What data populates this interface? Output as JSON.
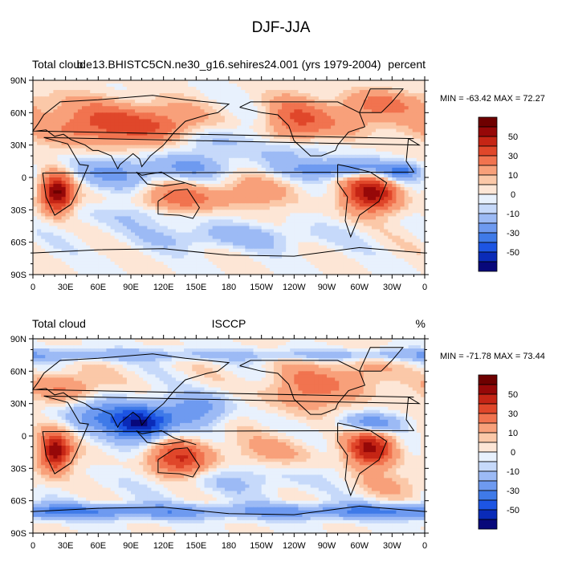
{
  "figure_title": "DJF-JJA",
  "chart_data": [
    {
      "type": "heatmap",
      "variant": "global-contour-map",
      "title_left": "Total cloud",
      "title_center": "b.e13.BHISTC5CN.ne30_g16.sehires24.001 (yrs 1979-2004)",
      "title_right": "percent",
      "stats_text": "MIN = -63.42 MAX =  72.27",
      "min": -63.42,
      "max": 72.27,
      "lon_ticks": [
        "0",
        "30E",
        "60E",
        "90E",
        "120E",
        "150E",
        "180",
        "150W",
        "120W",
        "90W",
        "60W",
        "30W",
        "0"
      ],
      "lat_ticks": [
        "90N",
        "60N",
        "30N",
        "0",
        "30S",
        "60S",
        "90S"
      ],
      "xlim": [
        0,
        360
      ],
      "ylim": [
        -90,
        90
      ],
      "levels": [
        -60,
        -50,
        -40,
        -30,
        -20,
        -10,
        -5,
        0,
        5,
        10,
        20,
        30,
        40,
        50,
        60
      ],
      "colorbar_labels": [
        "50",
        "30",
        "10",
        "0",
        "-10",
        "-30",
        "-50"
      ]
    },
    {
      "type": "heatmap",
      "variant": "global-contour-map",
      "title_left": "Total cloud",
      "title_center": "ISCCP",
      "title_right": "%",
      "stats_text": "MIN = -71.78 MAX =  73.44",
      "min": -71.78,
      "max": 73.44,
      "lon_ticks": [
        "0",
        "30E",
        "60E",
        "90E",
        "120E",
        "150E",
        "180",
        "150W",
        "120W",
        "90W",
        "60W",
        "30W",
        "0"
      ],
      "lat_ticks": [
        "90N",
        "60N",
        "30N",
        "0",
        "30S",
        "60S",
        "90S"
      ],
      "xlim": [
        0,
        360
      ],
      "ylim": [
        -90,
        90
      ],
      "levels": [
        -60,
        -50,
        -40,
        -30,
        -20,
        -10,
        -5,
        0,
        5,
        10,
        20,
        30,
        40,
        50,
        60
      ],
      "colorbar_labels": [
        "50",
        "30",
        "10",
        "0",
        "-10",
        "-30",
        "-50"
      ]
    }
  ],
  "colors": {
    "palette": [
      "#08087a",
      "#0a2bb8",
      "#1d55e3",
      "#3f7ae8",
      "#6e9af0",
      "#9cbaf5",
      "#c6d9fa",
      "#e8f1fd",
      "#fde6d6",
      "#fbc8a8",
      "#f8a07a",
      "#f1734f",
      "#e0472a",
      "#c52515",
      "#960808",
      "#6e0000"
    ]
  }
}
